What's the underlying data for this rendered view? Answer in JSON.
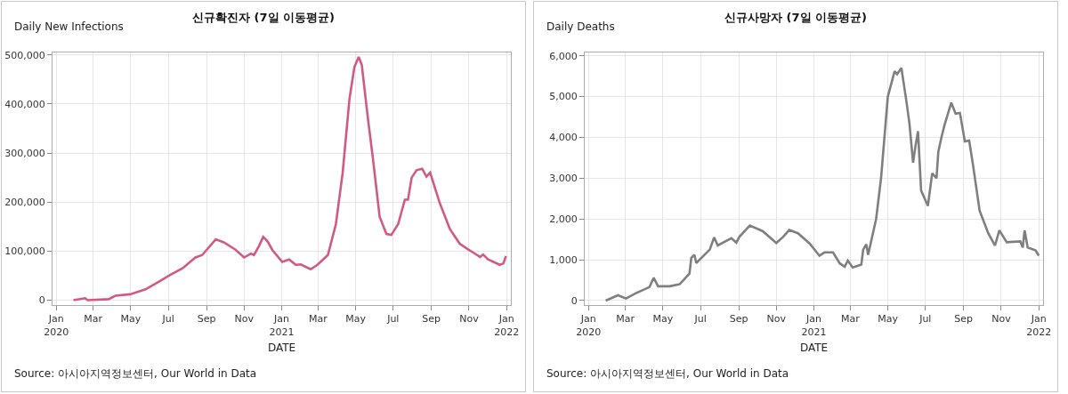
{
  "chart_data": [
    {
      "type": "line",
      "title": "신규확진자 (7일 이동평균)",
      "ylabel": "Daily New Infections",
      "xlabel": "DATE",
      "grid": true,
      "marker": "none",
      "line_style": "solid",
      "annotations": [
        "Source: 아시아지역정보센터, Our World in Data"
      ],
      "xlim": [
        "2019-12-26",
        "2022-01-08"
      ],
      "xticks": [
        {
          "value": "2020-01-01",
          "label": "Jan\n2020"
        },
        {
          "value": "2020-03-01",
          "label": "Mar"
        },
        {
          "value": "2020-05-01",
          "label": "May"
        },
        {
          "value": "2020-07-01",
          "label": "Jul"
        },
        {
          "value": "2020-09-01",
          "label": "Sep"
        },
        {
          "value": "2020-11-01",
          "label": "Nov"
        },
        {
          "value": "2021-01-01",
          "label": "Jan\n2021"
        },
        {
          "value": "2021-03-01",
          "label": "Mar"
        },
        {
          "value": "2021-05-01",
          "label": "May"
        },
        {
          "value": "2021-07-01",
          "label": "Jul"
        },
        {
          "value": "2021-09-01",
          "label": "Sep"
        },
        {
          "value": "2021-11-01",
          "label": "Nov"
        },
        {
          "value": "2022-01-01",
          "label": "Jan\n2022"
        }
      ],
      "ylim": [
        -10000,
        505000
      ],
      "yticks": [
        0,
        {
          "value": 100000,
          "label": "100,000"
        },
        {
          "value": 200000,
          "label": "200,000"
        },
        {
          "value": 300000,
          "label": "300,000"
        },
        {
          "value": 400000,
          "label": "400,000"
        },
        {
          "value": 500000,
          "label": "500,000"
        }
      ],
      "x": [
        "2020-01-29",
        "2020-02-17",
        "2020-02-21",
        "2020-03-26",
        "2020-04-06",
        "2020-04-30",
        "2020-05-25",
        "2020-06-16",
        "2020-07-02",
        "2020-07-24",
        "2020-08-14",
        "2020-08-25",
        "2020-09-16",
        "2020-09-29",
        "2020-10-18",
        "2020-11-01",
        "2020-11-12",
        "2020-11-17",
        "2020-11-25",
        "2020-12-02",
        "2020-12-09",
        "2020-12-17",
        "2021-01-02",
        "2021-01-13",
        "2021-01-24",
        "2021-02-01",
        "2021-02-17",
        "2021-02-28",
        "2021-03-17",
        "2021-03-30",
        "2021-04-10",
        "2021-04-21",
        "2021-04-29",
        "2021-05-06",
        "2021-05-11",
        "2021-05-21",
        "2021-05-29",
        "2021-06-09",
        "2021-06-20",
        "2021-06-28",
        "2021-07-09",
        "2021-07-20",
        "2021-07-25",
        "2021-07-31",
        "2021-08-08",
        "2021-08-17",
        "2021-08-24",
        "2021-08-30",
        "2021-09-14",
        "2021-10-01",
        "2021-10-17",
        "2021-10-31",
        "2021-11-08",
        "2021-11-19",
        "2021-11-24",
        "2021-12-02",
        "2021-12-21",
        "2021-12-27",
        "2021-12-31"
      ],
      "series": [
        {
          "color": "#d05a85",
          "values": [
            0,
            4000,
            0,
            2000,
            9000,
            12000,
            22000,
            38000,
            50000,
            65000,
            87000,
            92000,
            124000,
            118000,
            103000,
            87000,
            95000,
            92000,
            110000,
            129000,
            120000,
            102000,
            78000,
            83000,
            72000,
            73000,
            63000,
            72000,
            92000,
            155000,
            260000,
            410000,
            475000,
            496000,
            480000,
            370000,
            290000,
            170000,
            135000,
            133000,
            155000,
            205000,
            205000,
            250000,
            265000,
            268000,
            252000,
            260000,
            200000,
            145000,
            115000,
            103000,
            97000,
            88000,
            93000,
            83000,
            72000,
            75000,
            90000
          ]
        }
      ]
    },
    {
      "type": "line",
      "title": "신규사망자 (7일 이동평균)",
      "ylabel": "Daily Deaths",
      "xlabel": "DATE",
      "grid": true,
      "marker": "none",
      "line_style": "solid",
      "annotations": [
        "Source: 아시아지역정보센터, Our World in Data"
      ],
      "xlim": [
        "2019-12-26",
        "2022-01-08"
      ],
      "xticks": [
        {
          "value": "2020-01-01",
          "label": "Jan\n2020"
        },
        {
          "value": "2020-03-01",
          "label": "Mar"
        },
        {
          "value": "2020-05-01",
          "label": "May"
        },
        {
          "value": "2020-07-01",
          "label": "Jul"
        },
        {
          "value": "2020-09-01",
          "label": "Sep"
        },
        {
          "value": "2020-11-01",
          "label": "Nov"
        },
        {
          "value": "2021-01-01",
          "label": "Jan\n2021"
        },
        {
          "value": "2021-03-01",
          "label": "Mar"
        },
        {
          "value": "2021-05-01",
          "label": "May"
        },
        {
          "value": "2021-07-01",
          "label": "Jul"
        },
        {
          "value": "2021-09-01",
          "label": "Sep"
        },
        {
          "value": "2021-11-01",
          "label": "Nov"
        },
        {
          "value": "2022-01-01",
          "label": "Jan\n2022"
        }
      ],
      "ylim": [
        -110,
        6080
      ],
      "yticks": [
        0,
        {
          "value": 1000,
          "label": "1,000"
        },
        {
          "value": 2000,
          "label": "2,000"
        },
        {
          "value": 3000,
          "label": "3,000"
        },
        {
          "value": 4000,
          "label": "4,000"
        },
        {
          "value": 5000,
          "label": "5,000"
        },
        {
          "value": 6000,
          "label": "6,000"
        }
      ],
      "x": [
        "2020-01-29",
        "2020-02-18",
        "2020-03-02",
        "2020-03-18",
        "2020-04-09",
        "2020-04-16",
        "2020-04-23",
        "2020-05-12",
        "2020-05-28",
        "2020-06-13",
        "2020-06-16",
        "2020-06-21",
        "2020-06-24",
        "2020-07-16",
        "2020-07-23",
        "2020-07-29",
        "2020-08-20",
        "2020-08-28",
        "2020-09-02",
        "2020-09-19",
        "2020-10-10",
        "2020-11-01",
        "2020-11-12",
        "2020-11-22",
        "2020-12-06",
        "2020-12-25",
        "2021-01-10",
        "2021-01-18",
        "2021-02-01",
        "2021-02-12",
        "2021-02-20",
        "2021-02-25",
        "2021-03-05",
        "2021-03-19",
        "2021-03-22",
        "2021-03-27",
        "2021-03-30",
        "2021-04-12",
        "2021-04-20",
        "2021-05-01",
        "2021-05-12",
        "2021-05-16",
        "2021-05-23",
        "2021-05-31",
        "2021-06-05",
        "2021-06-11",
        "2021-06-15",
        "2021-06-19",
        "2021-06-24",
        "2021-07-05",
        "2021-07-12",
        "2021-07-19",
        "2021-07-22",
        "2021-07-27",
        "2021-08-01",
        "2021-08-12",
        "2021-08-19",
        "2021-08-26",
        "2021-09-03",
        "2021-09-10",
        "2021-09-16",
        "2021-09-27",
        "2021-10-11",
        "2021-10-22",
        "2021-10-29",
        "2021-11-10",
        "2021-12-02",
        "2021-12-06",
        "2021-12-09",
        "2021-12-14",
        "2021-12-27",
        "2022-01-01"
      ],
      "series": [
        {
          "color": "#7f7f7f",
          "values": [
            0,
            130,
            50,
            180,
            330,
            560,
            350,
            350,
            400,
            660,
            1050,
            1120,
            920,
            1250,
            1550,
            1350,
            1530,
            1420,
            1560,
            1840,
            1700,
            1410,
            1560,
            1730,
            1650,
            1400,
            1100,
            1180,
            1180,
            910,
            830,
            980,
            810,
            880,
            1250,
            1380,
            1120,
            2000,
            3000,
            5000,
            5620,
            5550,
            5700,
            4900,
            4350,
            3380,
            3800,
            4150,
            2700,
            2320,
            3120,
            3000,
            3650,
            4000,
            4300,
            4850,
            4580,
            4600,
            3900,
            3920,
            3350,
            2200,
            1650,
            1350,
            1720,
            1430,
            1450,
            1300,
            1720,
            1300,
            1230,
            1100
          ]
        }
      ]
    }
  ]
}
